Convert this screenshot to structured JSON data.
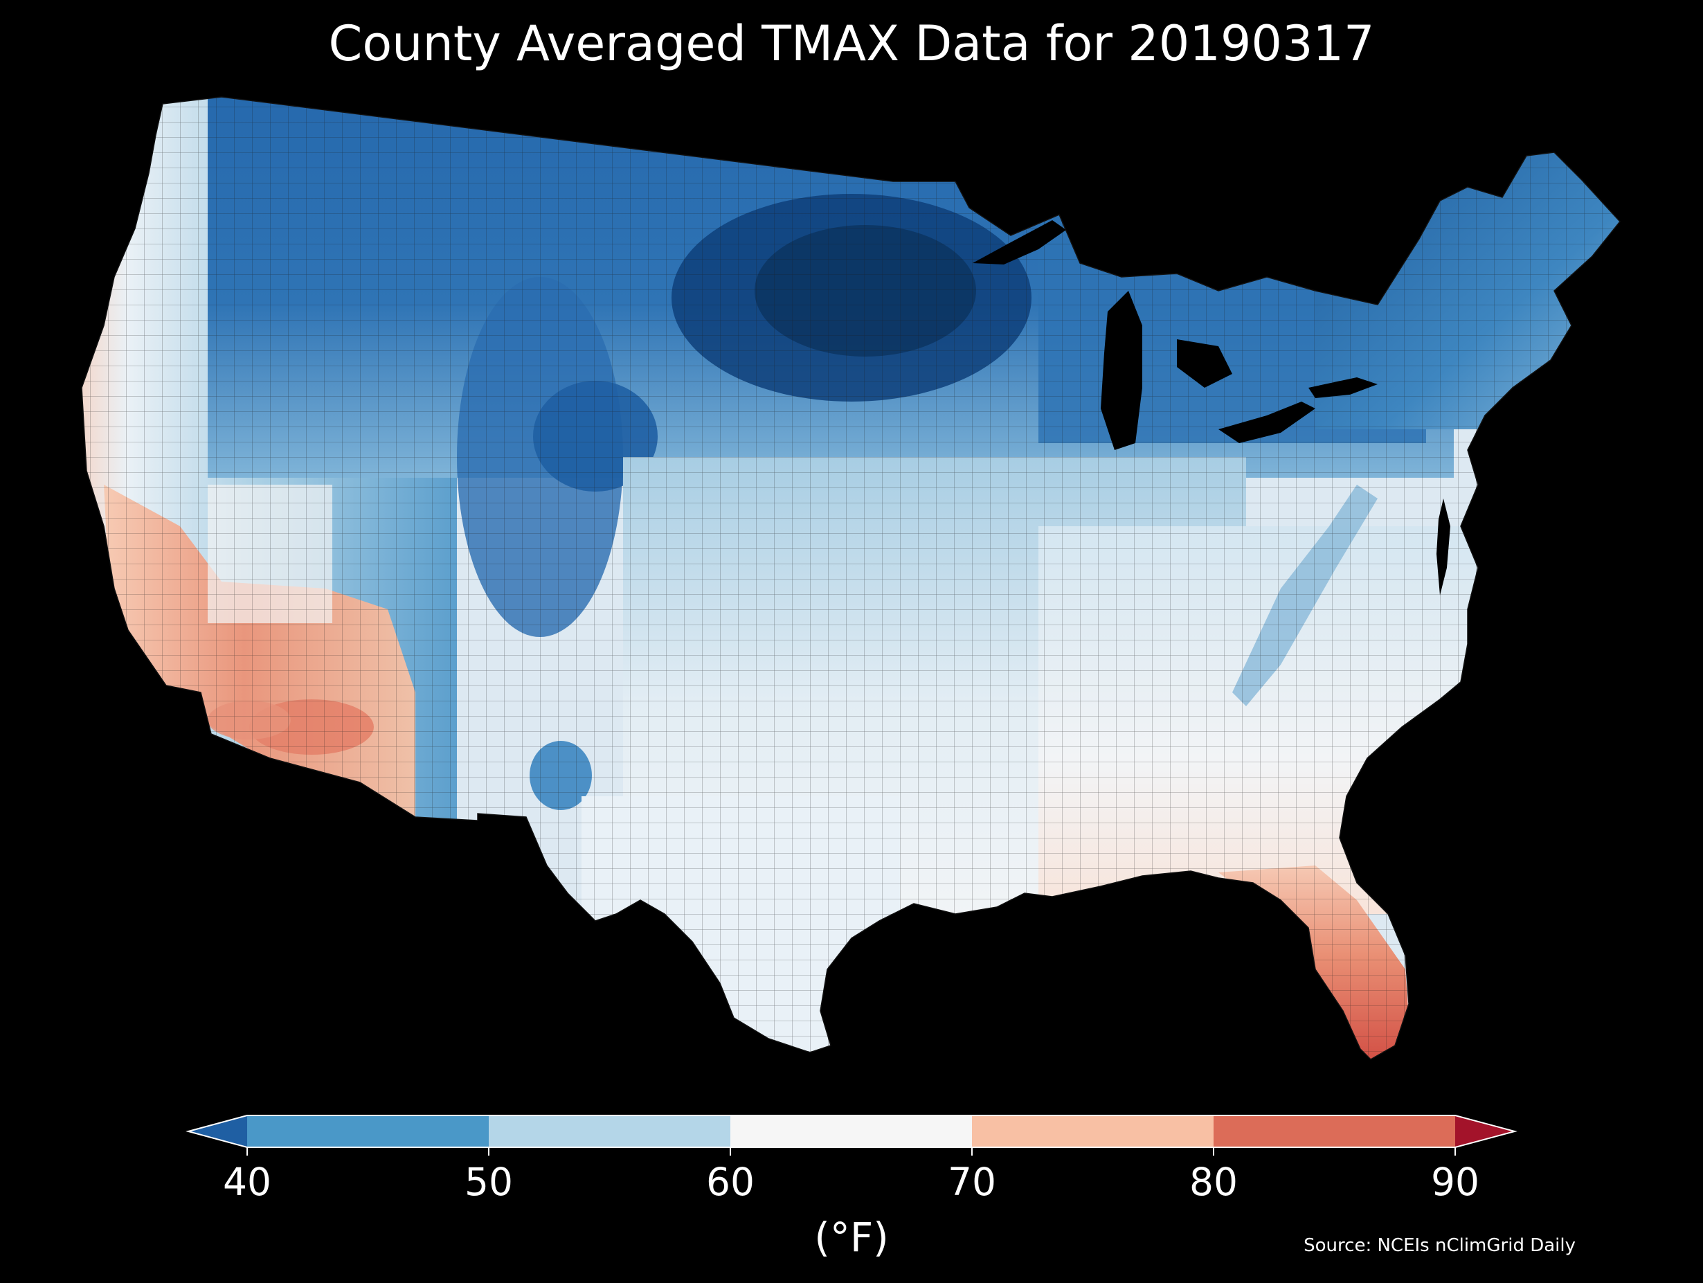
{
  "title": "County Averaged TMAX Data for 20190317",
  "colorbar": {
    "ticks": [
      "40",
      "50",
      "60",
      "70",
      "80",
      "90"
    ],
    "tick_values": [
      40,
      50,
      60,
      70,
      80,
      90
    ],
    "label": "(°F)",
    "extend": "both",
    "bins": [
      {
        "from": null,
        "to": 40,
        "color": "#1f5fa3"
      },
      {
        "from": 40,
        "to": 50,
        "color": "#4a98c8"
      },
      {
        "from": 50,
        "to": 60,
        "color": "#b4d6e8"
      },
      {
        "from": 60,
        "to": 70,
        "color": "#f6f6f6"
      },
      {
        "from": 70,
        "to": 80,
        "color": "#f8c0a4"
      },
      {
        "from": 80,
        "to": 90,
        "color": "#dc6c58"
      },
      {
        "from": 90,
        "to": null,
        "color": "#a3132a"
      }
    ]
  },
  "source": "Source: NCEIs nClimGrid Daily",
  "map": {
    "region": "Contiguous United States",
    "background_color": "#000000",
    "boundaries": "counties"
  }
}
